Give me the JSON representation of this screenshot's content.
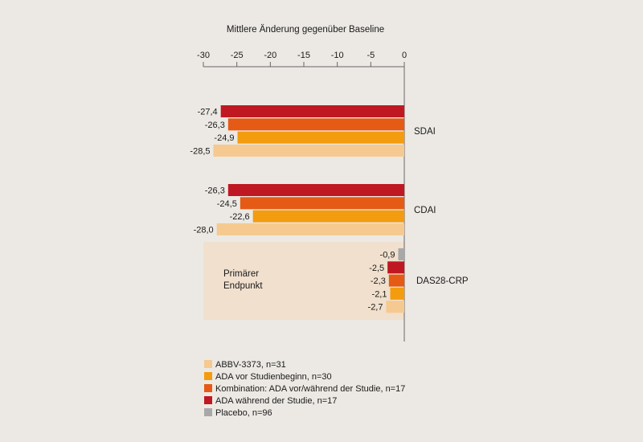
{
  "chart_data": {
    "type": "bar",
    "orientation": "horizontal",
    "title": "",
    "xlabel": "Mittlere Änderung gegenüber Baseline",
    "ylabel": "",
    "xlim": [
      -30,
      0
    ],
    "xticks": [
      -30,
      -25,
      -20,
      -15,
      -10,
      -5,
      0
    ],
    "xtick_labels": [
      "-30",
      "-25",
      "-20",
      "-15",
      "-10",
      "-5",
      "0"
    ],
    "grid": false,
    "legend_position": "bottom-left",
    "groups": [
      {
        "label": "SDAI",
        "bars": [
          {
            "series": "ADA während der Studie, n=17",
            "value": -27.4,
            "label": "-27,4"
          },
          {
            "series": "Kombination: ADA vor/während der Studie, n=17",
            "value": -26.3,
            "label": "-26,3"
          },
          {
            "series": "ADA vor Studienbeginn, n=30",
            "value": -24.9,
            "label": "-24,9"
          },
          {
            "series": "ABBV-3373, n=31",
            "value": -28.5,
            "label": "-28,5"
          }
        ]
      },
      {
        "label": "CDAI",
        "bars": [
          {
            "series": "ADA während der Studie, n=17",
            "value": -26.3,
            "label": "-26,3"
          },
          {
            "series": "Kombination: ADA vor/während der Studie, n=17",
            "value": -24.5,
            "label": "-24,5"
          },
          {
            "series": "ADA vor Studienbeginn, n=30",
            "value": -22.6,
            "label": "-22,6"
          },
          {
            "series": "ABBV-3373, n=31",
            "value": -28.0,
            "label": "-28,0"
          }
        ]
      },
      {
        "label": "DAS28-CRP",
        "note": [
          "Primärer",
          "Endpunkt"
        ],
        "bars": [
          {
            "series": "Placebo, n=96",
            "value": -0.9,
            "label": "-0,9"
          },
          {
            "series": "ADA während der Studie, n=17",
            "value": -2.5,
            "label": "-2,5"
          },
          {
            "series": "Kombination: ADA vor/während der Studie, n=17",
            "value": -2.3,
            "label": "-2,3"
          },
          {
            "series": "ADA vor Studienbeginn, n=30",
            "value": -2.1,
            "label": "-2,1"
          },
          {
            "series": "ABBV-3373, n=31",
            "value": -2.7,
            "label": "-2,7"
          }
        ]
      }
    ],
    "legend": [
      {
        "name": "ABBV-3373, n=31",
        "color": "#f5c98f"
      },
      {
        "name": "ADA vor Studienbeginn, n=30",
        "color": "#f39c0f"
      },
      {
        "name": "Kombination: ADA vor/während der Studie, n=17",
        "color": "#e55a14"
      },
      {
        "name": "ADA während der Studie, n=17",
        "color": "#bf1823"
      },
      {
        "name": "Placebo, n=96",
        "color": "#a8a8a8"
      }
    ],
    "highlight_color": "#f0e0cd"
  }
}
